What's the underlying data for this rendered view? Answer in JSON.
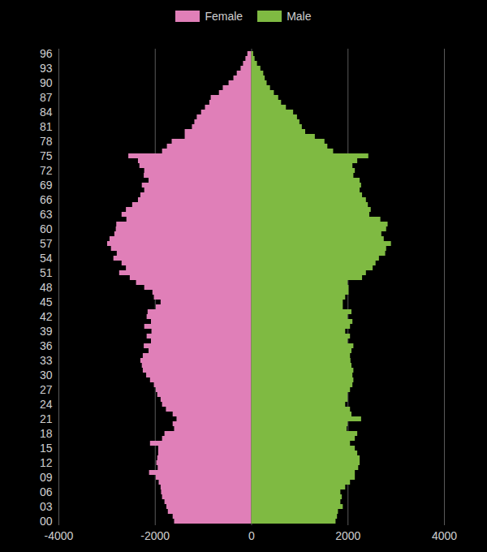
{
  "chart_data": {
    "type": "bar",
    "orientation": "horizontal",
    "legend": "top",
    "grid": true,
    "categories": [
      "00",
      null,
      null,
      "03",
      null,
      null,
      "06",
      null,
      null,
      "09",
      null,
      null,
      "12",
      null,
      null,
      "15",
      null,
      null,
      "18",
      null,
      null,
      "21",
      null,
      null,
      "24",
      null,
      null,
      "27",
      null,
      null,
      "30",
      null,
      null,
      "33",
      null,
      null,
      "36",
      null,
      null,
      "39",
      null,
      null,
      "42",
      null,
      null,
      "45",
      null,
      null,
      "48",
      null,
      null,
      "51",
      null,
      null,
      "54",
      null,
      null,
      "57",
      null,
      null,
      "60",
      null,
      null,
      "63",
      null,
      null,
      "66",
      null,
      null,
      "69",
      null,
      null,
      "72",
      null,
      null,
      "75",
      null,
      null,
      "78",
      null,
      null,
      "81",
      null,
      null,
      "84",
      null,
      null,
      "87",
      null,
      null,
      "90",
      null,
      null,
      "93",
      null,
      null,
      "96"
    ],
    "series": [
      {
        "name": "Female",
        "color": "#e07fb8",
        "values": [
          -1600,
          -1630,
          -1730,
          -1760,
          -1800,
          -1850,
          -1870,
          -1880,
          -1920,
          -1980,
          -2120,
          -1940,
          -1970,
          -1950,
          -1930,
          -1930,
          -2100,
          -1850,
          -1800,
          -1600,
          -1630,
          -1550,
          -1630,
          -1770,
          -1850,
          -1880,
          -1950,
          -1980,
          -2020,
          -2100,
          -2180,
          -2250,
          -2270,
          -2300,
          -2250,
          -2130,
          -2230,
          -2080,
          -2170,
          -2070,
          -2220,
          -2080,
          -2170,
          -2150,
          -1980,
          -1880,
          -2020,
          -2050,
          -2220,
          -2390,
          -2520,
          -2740,
          -2600,
          -2690,
          -2860,
          -2790,
          -2910,
          -2990,
          -2940,
          -2840,
          -2810,
          -2800,
          -2590,
          -2690,
          -2600,
          -2470,
          -2350,
          -2300,
          -2220,
          -2270,
          -2130,
          -2230,
          -2220,
          -2320,
          -2350,
          -2550,
          -1850,
          -1750,
          -1650,
          -1380,
          -1380,
          -1230,
          -1180,
          -1130,
          -1040,
          -960,
          -870,
          -840,
          -670,
          -590,
          -470,
          -370,
          -300,
          -220,
          -170,
          -120,
          -80
        ]
      },
      {
        "name": "Male",
        "color": "#7fba42",
        "values": [
          1750,
          1780,
          1800,
          1900,
          1850,
          1880,
          1850,
          1950,
          2050,
          2150,
          2150,
          2220,
          2250,
          2250,
          2200,
          2150,
          2050,
          2150,
          2200,
          1980,
          2000,
          2280,
          2080,
          2050,
          1950,
          2000,
          2000,
          2050,
          2100,
          2120,
          2100,
          2120,
          2080,
          2060,
          2050,
          2080,
          2120,
          2000,
          2050,
          1950,
          2050,
          2100,
          2000,
          2080,
          1900,
          1900,
          1950,
          2020,
          2020,
          2000,
          2300,
          2380,
          2520,
          2580,
          2650,
          2780,
          2800,
          2900,
          2750,
          2700,
          2800,
          2830,
          2680,
          2450,
          2480,
          2420,
          2380,
          2300,
          2250,
          2280,
          2250,
          2120,
          2150,
          2100,
          2200,
          2430,
          1700,
          1580,
          1520,
          1320,
          1120,
          1050,
          1000,
          950,
          870,
          720,
          620,
          560,
          470,
          390,
          320,
          280,
          250,
          190,
          120,
          70,
          40
        ]
      }
    ],
    "xlim": [
      -4000,
      4000
    ],
    "xticks": [
      -4000,
      -2000,
      0,
      2000,
      4000
    ]
  }
}
